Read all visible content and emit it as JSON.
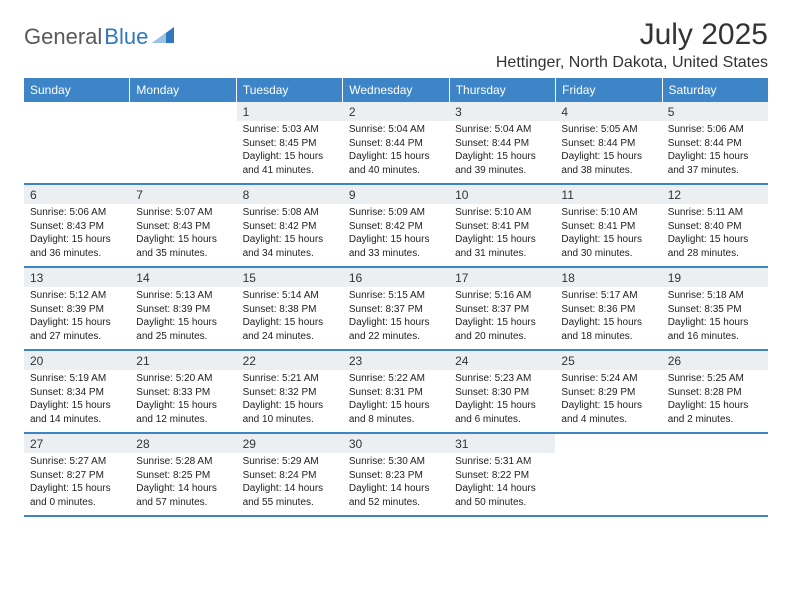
{
  "logo": {
    "general": "General",
    "blue": "Blue"
  },
  "title": "July 2025",
  "location": "Hettinger, North Dakota, United States",
  "brand_color": "#3d85c6",
  "day_header_bg": "#eceff1",
  "day_headers": [
    "Sunday",
    "Monday",
    "Tuesday",
    "Wednesday",
    "Thursday",
    "Friday",
    "Saturday"
  ],
  "weeks": [
    [
      {
        "day": "",
        "lines": []
      },
      {
        "day": "",
        "lines": []
      },
      {
        "day": "1",
        "lines": [
          "Sunrise: 5:03 AM",
          "Sunset: 8:45 PM",
          "Daylight: 15 hours and 41 minutes."
        ]
      },
      {
        "day": "2",
        "lines": [
          "Sunrise: 5:04 AM",
          "Sunset: 8:44 PM",
          "Daylight: 15 hours and 40 minutes."
        ]
      },
      {
        "day": "3",
        "lines": [
          "Sunrise: 5:04 AM",
          "Sunset: 8:44 PM",
          "Daylight: 15 hours and 39 minutes."
        ]
      },
      {
        "day": "4",
        "lines": [
          "Sunrise: 5:05 AM",
          "Sunset: 8:44 PM",
          "Daylight: 15 hours and 38 minutes."
        ]
      },
      {
        "day": "5",
        "lines": [
          "Sunrise: 5:06 AM",
          "Sunset: 8:44 PM",
          "Daylight: 15 hours and 37 minutes."
        ]
      }
    ],
    [
      {
        "day": "6",
        "lines": [
          "Sunrise: 5:06 AM",
          "Sunset: 8:43 PM",
          "Daylight: 15 hours and 36 minutes."
        ]
      },
      {
        "day": "7",
        "lines": [
          "Sunrise: 5:07 AM",
          "Sunset: 8:43 PM",
          "Daylight: 15 hours and 35 minutes."
        ]
      },
      {
        "day": "8",
        "lines": [
          "Sunrise: 5:08 AM",
          "Sunset: 8:42 PM",
          "Daylight: 15 hours and 34 minutes."
        ]
      },
      {
        "day": "9",
        "lines": [
          "Sunrise: 5:09 AM",
          "Sunset: 8:42 PM",
          "Daylight: 15 hours and 33 minutes."
        ]
      },
      {
        "day": "10",
        "lines": [
          "Sunrise: 5:10 AM",
          "Sunset: 8:41 PM",
          "Daylight: 15 hours and 31 minutes."
        ]
      },
      {
        "day": "11",
        "lines": [
          "Sunrise: 5:10 AM",
          "Sunset: 8:41 PM",
          "Daylight: 15 hours and 30 minutes."
        ]
      },
      {
        "day": "12",
        "lines": [
          "Sunrise: 5:11 AM",
          "Sunset: 8:40 PM",
          "Daylight: 15 hours and 28 minutes."
        ]
      }
    ],
    [
      {
        "day": "13",
        "lines": [
          "Sunrise: 5:12 AM",
          "Sunset: 8:39 PM",
          "Daylight: 15 hours and 27 minutes."
        ]
      },
      {
        "day": "14",
        "lines": [
          "Sunrise: 5:13 AM",
          "Sunset: 8:39 PM",
          "Daylight: 15 hours and 25 minutes."
        ]
      },
      {
        "day": "15",
        "lines": [
          "Sunrise: 5:14 AM",
          "Sunset: 8:38 PM",
          "Daylight: 15 hours and 24 minutes."
        ]
      },
      {
        "day": "16",
        "lines": [
          "Sunrise: 5:15 AM",
          "Sunset: 8:37 PM",
          "Daylight: 15 hours and 22 minutes."
        ]
      },
      {
        "day": "17",
        "lines": [
          "Sunrise: 5:16 AM",
          "Sunset: 8:37 PM",
          "Daylight: 15 hours and 20 minutes."
        ]
      },
      {
        "day": "18",
        "lines": [
          "Sunrise: 5:17 AM",
          "Sunset: 8:36 PM",
          "Daylight: 15 hours and 18 minutes."
        ]
      },
      {
        "day": "19",
        "lines": [
          "Sunrise: 5:18 AM",
          "Sunset: 8:35 PM",
          "Daylight: 15 hours and 16 minutes."
        ]
      }
    ],
    [
      {
        "day": "20",
        "lines": [
          "Sunrise: 5:19 AM",
          "Sunset: 8:34 PM",
          "Daylight: 15 hours and 14 minutes."
        ]
      },
      {
        "day": "21",
        "lines": [
          "Sunrise: 5:20 AM",
          "Sunset: 8:33 PM",
          "Daylight: 15 hours and 12 minutes."
        ]
      },
      {
        "day": "22",
        "lines": [
          "Sunrise: 5:21 AM",
          "Sunset: 8:32 PM",
          "Daylight: 15 hours and 10 minutes."
        ]
      },
      {
        "day": "23",
        "lines": [
          "Sunrise: 5:22 AM",
          "Sunset: 8:31 PM",
          "Daylight: 15 hours and 8 minutes."
        ]
      },
      {
        "day": "24",
        "lines": [
          "Sunrise: 5:23 AM",
          "Sunset: 8:30 PM",
          "Daylight: 15 hours and 6 minutes."
        ]
      },
      {
        "day": "25",
        "lines": [
          "Sunrise: 5:24 AM",
          "Sunset: 8:29 PM",
          "Daylight: 15 hours and 4 minutes."
        ]
      },
      {
        "day": "26",
        "lines": [
          "Sunrise: 5:25 AM",
          "Sunset: 8:28 PM",
          "Daylight: 15 hours and 2 minutes."
        ]
      }
    ],
    [
      {
        "day": "27",
        "lines": [
          "Sunrise: 5:27 AM",
          "Sunset: 8:27 PM",
          "Daylight: 15 hours and 0 minutes."
        ]
      },
      {
        "day": "28",
        "lines": [
          "Sunrise: 5:28 AM",
          "Sunset: 8:25 PM",
          "Daylight: 14 hours and 57 minutes."
        ]
      },
      {
        "day": "29",
        "lines": [
          "Sunrise: 5:29 AM",
          "Sunset: 8:24 PM",
          "Daylight: 14 hours and 55 minutes."
        ]
      },
      {
        "day": "30",
        "lines": [
          "Sunrise: 5:30 AM",
          "Sunset: 8:23 PM",
          "Daylight: 14 hours and 52 minutes."
        ]
      },
      {
        "day": "31",
        "lines": [
          "Sunrise: 5:31 AM",
          "Sunset: 8:22 PM",
          "Daylight: 14 hours and 50 minutes."
        ]
      },
      {
        "day": "",
        "lines": []
      },
      {
        "day": "",
        "lines": []
      }
    ]
  ]
}
